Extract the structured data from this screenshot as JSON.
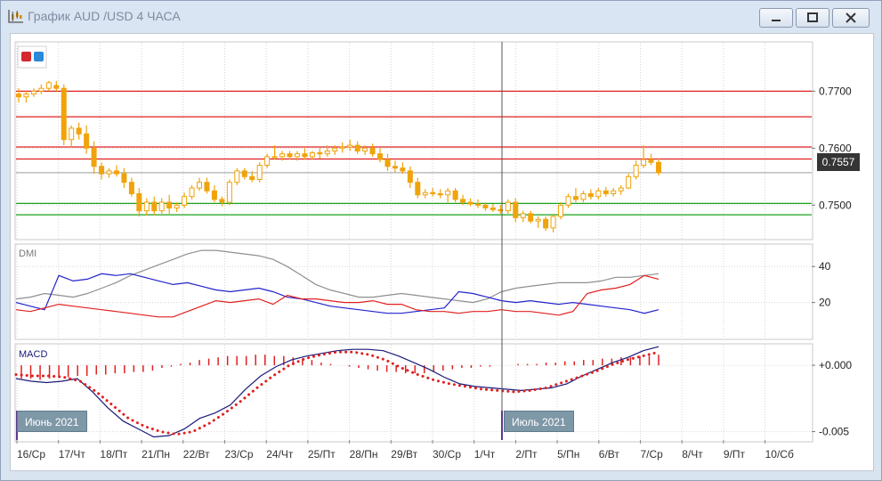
{
  "window": {
    "title": "График AUD /USD  4 ЧАСА",
    "buttons": [
      "minimize-button",
      "restore-button",
      "close-button"
    ]
  },
  "colors": {
    "candle": "#f0a30a",
    "resistance_line": "#e02020",
    "support_line": "#1aa31a",
    "current_line": "#9a9a9a",
    "dmi_adx": "#8f8f8f",
    "dmi_plus": "#2222cc",
    "dmi_minus": "#e02020",
    "macd_line": "#1a1a7a",
    "macd_signal": "#e02020",
    "macd_hist": "#e02020",
    "grid": "#d6d6d6",
    "cursor": "#4a4a4a",
    "month_label_bg": "#7f98a8",
    "current_price_bg": "#353535"
  },
  "current_price": "0.7557",
  "month_labels": {
    "june": "Июнь 2021",
    "july": "Июль 2021"
  },
  "chart_data": [
    {
      "type": "candlestick",
      "title": "",
      "y_ticks": [
        "0.7700",
        "0.7600",
        "0.7500"
      ],
      "y_tick_values": [
        0.77,
        0.76,
        0.75
      ],
      "ylim": [
        0.7441,
        0.7785
      ],
      "grid": true,
      "horizontal_levels": {
        "resistance": [
          0.77,
          0.7655,
          0.7602,
          0.7581
        ],
        "support": [
          0.7503,
          0.7483
        ],
        "current": 0.7557
      },
      "x_labels": [
        "16/Ср",
        "17/Чт",
        "18/Пт",
        "21/Пн",
        "22/Вт",
        "23/Ср",
        "24/Чт",
        "25/Пт",
        "28/Пн",
        "29/Вт",
        "30/Ср",
        "1/Чт",
        "2/Пт",
        "5/Пн",
        "6/Вт",
        "7/Ср",
        "8/Чт",
        "9/Пт",
        "10/Сб"
      ],
      "candles": [
        [
          0.7695,
          0.7705,
          0.768,
          0.769
        ],
        [
          0.769,
          0.77,
          0.768,
          0.7695
        ],
        [
          0.7695,
          0.7705,
          0.769,
          0.77
        ],
        [
          0.77,
          0.7712,
          0.7695,
          0.7705
        ],
        [
          0.7705,
          0.7718,
          0.77,
          0.7715
        ],
        [
          0.771,
          0.7718,
          0.77,
          0.7705
        ],
        [
          0.7705,
          0.7712,
          0.7605,
          0.7615
        ],
        [
          0.7615,
          0.764,
          0.76,
          0.7635
        ],
        [
          0.7635,
          0.7645,
          0.7615,
          0.7625
        ],
        [
          0.7625,
          0.764,
          0.759,
          0.76
        ],
        [
          0.76,
          0.7612,
          0.7555,
          0.7568
        ],
        [
          0.7568,
          0.7575,
          0.7545,
          0.7555
        ],
        [
          0.7555,
          0.7565,
          0.7548,
          0.756
        ],
        [
          0.756,
          0.757,
          0.755,
          0.7555
        ],
        [
          0.7555,
          0.7565,
          0.753,
          0.754
        ],
        [
          0.754,
          0.7548,
          0.7515,
          0.752
        ],
        [
          0.752,
          0.753,
          0.748,
          0.749
        ],
        [
          0.749,
          0.7512,
          0.7482,
          0.7505
        ],
        [
          0.7505,
          0.7515,
          0.7482,
          0.749
        ],
        [
          0.749,
          0.7512,
          0.7485,
          0.7505
        ],
        [
          0.7505,
          0.7518,
          0.7485,
          0.7495
        ],
        [
          0.7495,
          0.7505,
          0.7488,
          0.75
        ],
        [
          0.75,
          0.7522,
          0.7495,
          0.7515
        ],
        [
          0.7515,
          0.7535,
          0.751,
          0.753
        ],
        [
          0.753,
          0.7548,
          0.7525,
          0.754
        ],
        [
          0.754,
          0.7548,
          0.752,
          0.7525
        ],
        [
          0.7525,
          0.7535,
          0.7505,
          0.751
        ],
        [
          0.751,
          0.7515,
          0.7498,
          0.7505
        ],
        [
          0.7505,
          0.7545,
          0.75,
          0.754
        ],
        [
          0.754,
          0.7565,
          0.7535,
          0.756
        ],
        [
          0.756,
          0.7565,
          0.7545,
          0.755
        ],
        [
          0.755,
          0.756,
          0.754,
          0.7545
        ],
        [
          0.7545,
          0.7575,
          0.754,
          0.757
        ],
        [
          0.757,
          0.759,
          0.7565,
          0.7585
        ],
        [
          0.7585,
          0.7605,
          0.758,
          0.7585
        ],
        [
          0.7585,
          0.7595,
          0.7578,
          0.759
        ],
        [
          0.759,
          0.7595,
          0.758,
          0.7585
        ],
        [
          0.7585,
          0.7595,
          0.7578,
          0.759
        ],
        [
          0.759,
          0.76,
          0.758,
          0.7585
        ],
        [
          0.7585,
          0.7595,
          0.758,
          0.7592
        ],
        [
          0.7592,
          0.76,
          0.7582,
          0.759
        ],
        [
          0.759,
          0.7605,
          0.7585,
          0.7595
        ],
        [
          0.7595,
          0.7605,
          0.7588,
          0.76
        ],
        [
          0.76,
          0.761,
          0.7592,
          0.7602
        ],
        [
          0.7602,
          0.7615,
          0.7595,
          0.7605
        ],
        [
          0.7605,
          0.7612,
          0.759,
          0.7595
        ],
        [
          0.7595,
          0.7605,
          0.7588,
          0.76
        ],
        [
          0.76,
          0.7608,
          0.7585,
          0.759
        ],
        [
          0.759,
          0.76,
          0.7575,
          0.758
        ],
        [
          0.758,
          0.759,
          0.756,
          0.7568
        ],
        [
          0.7568,
          0.7578,
          0.7558,
          0.7565
        ],
        [
          0.7565,
          0.7575,
          0.7555,
          0.756
        ],
        [
          0.756,
          0.7568,
          0.753,
          0.754
        ],
        [
          0.754,
          0.7548,
          0.7512,
          0.7518
        ],
        [
          0.7518,
          0.7528,
          0.7512,
          0.7522
        ],
        [
          0.7522,
          0.753,
          0.7515,
          0.752
        ],
        [
          0.752,
          0.7528,
          0.7512,
          0.7518
        ],
        [
          0.7518,
          0.753,
          0.7505,
          0.7525
        ],
        [
          0.7525,
          0.753,
          0.7505,
          0.751
        ],
        [
          0.751,
          0.7518,
          0.75,
          0.7505
        ],
        [
          0.7505,
          0.7512,
          0.7498,
          0.7502
        ],
        [
          0.7502,
          0.751,
          0.7495,
          0.75
        ],
        [
          0.75,
          0.7505,
          0.749,
          0.7495
        ],
        [
          0.7495,
          0.7502,
          0.7488,
          0.7492
        ],
        [
          0.7492,
          0.75,
          0.7485,
          0.749
        ],
        [
          0.749,
          0.751,
          0.7485,
          0.7505
        ],
        [
          0.7505,
          0.7512,
          0.747,
          0.7478
        ],
        [
          0.7478,
          0.749,
          0.747,
          0.7485
        ],
        [
          0.7485,
          0.749,
          0.7468,
          0.7472
        ],
        [
          0.7472,
          0.748,
          0.746,
          0.7475
        ],
        [
          0.7475,
          0.748,
          0.7455,
          0.746
        ],
        [
          0.746,
          0.7485,
          0.7452,
          0.748
        ],
        [
          0.748,
          0.7505,
          0.7475,
          0.75
        ],
        [
          0.75,
          0.752,
          0.7495,
          0.7515
        ],
        [
          0.7515,
          0.753,
          0.7505,
          0.751
        ],
        [
          0.751,
          0.7525,
          0.7505,
          0.752
        ],
        [
          0.752,
          0.7528,
          0.751,
          0.7515
        ],
        [
          0.7515,
          0.753,
          0.751,
          0.7525
        ],
        [
          0.7525,
          0.7532,
          0.7515,
          0.752
        ],
        [
          0.752,
          0.753,
          0.7515,
          0.7525
        ],
        [
          0.7525,
          0.7535,
          0.7518,
          0.753
        ],
        [
          0.753,
          0.7555,
          0.7528,
          0.755
        ],
        [
          0.755,
          0.7578,
          0.7545,
          0.757
        ],
        [
          0.757,
          0.7605,
          0.7565,
          0.758
        ],
        [
          0.758,
          0.759,
          0.757,
          0.7575
        ],
        [
          0.7575,
          0.7582,
          0.7552,
          0.7557
        ]
      ]
    },
    {
      "type": "line",
      "title": "DMI",
      "y_ticks": [
        "40",
        "20"
      ],
      "y_tick_values": [
        40,
        20
      ],
      "ylim": [
        0,
        52
      ],
      "series": [
        {
          "role": "adx",
          "values": [
            22,
            23,
            25,
            24,
            23,
            25,
            28,
            31,
            35,
            38,
            41,
            44,
            47,
            49,
            49,
            48,
            47,
            46,
            44,
            40,
            35,
            30,
            27,
            25,
            23,
            23,
            24,
            25,
            24,
            23,
            22,
            21,
            20,
            22,
            26,
            28,
            29,
            30,
            31,
            31,
            31,
            32,
            34,
            34,
            35,
            36
          ]
        },
        {
          "role": "plus_di",
          "values": [
            20,
            18,
            16,
            35,
            32,
            33,
            36,
            35,
            36,
            34,
            32,
            30,
            31,
            29,
            27,
            26,
            27,
            28,
            26,
            23,
            22,
            20,
            18,
            17,
            16,
            15,
            14,
            14,
            15,
            16,
            17,
            26,
            25,
            23,
            21,
            20,
            21,
            20,
            19,
            20,
            19,
            18,
            17,
            16,
            14,
            16
          ]
        },
        {
          "role": "minus_di",
          "values": [
            16,
            15,
            17,
            19,
            18,
            17,
            16,
            15,
            14,
            13,
            12,
            12,
            15,
            18,
            21,
            20,
            21,
            22,
            19,
            24,
            22,
            22,
            21,
            20,
            20,
            21,
            19,
            19,
            16,
            15,
            15,
            14,
            15,
            15,
            16,
            15,
            15,
            14,
            13,
            15,
            25,
            27,
            28,
            30,
            35,
            33
          ]
        }
      ]
    },
    {
      "type": "line",
      "title": "MACD",
      "y_ticks": [
        "+0.000",
        "-0.005"
      ],
      "y_tick_values": [
        0.0,
        -0.005
      ],
      "ylim": [
        -0.0057,
        0.00155
      ],
      "series": [
        {
          "role": "macd",
          "values": [
            -0.001,
            -0.0012,
            -0.0013,
            -0.0012,
            -0.001,
            -0.002,
            -0.0032,
            -0.0042,
            -0.0048,
            -0.0054,
            -0.0053,
            -0.0048,
            -0.004,
            -0.0036,
            -0.003,
            -0.0018,
            -0.0008,
            -0.0001,
            0.0004,
            0.0007,
            0.0009,
            0.0011,
            0.0012,
            0.0012,
            0.0011,
            0.0007,
            0.0002,
            -0.0003,
            -0.0009,
            -0.0014,
            -0.0016,
            -0.0017,
            -0.0018,
            -0.0019,
            -0.0018,
            -0.0017,
            -0.0014,
            -0.0008,
            -0.0003,
            0.0002,
            0.0006,
            0.0011,
            0.0014
          ]
        },
        {
          "role": "signal",
          "values": [
            -0.0007,
            -0.0008,
            -0.0008,
            -0.0009,
            -0.0012,
            -0.002,
            -0.003,
            -0.004,
            -0.0046,
            -0.005,
            -0.0052,
            -0.005,
            -0.0044,
            -0.0036,
            -0.0027,
            -0.0017,
            -0.0008,
            0.0,
            0.0005,
            0.0008,
            0.001,
            0.001,
            0.0008,
            0.0004,
            -0.0002,
            -0.0007,
            -0.0011,
            -0.0014,
            -0.0016,
            -0.0018,
            -0.0019,
            -0.002,
            -0.0019,
            -0.0017,
            -0.0013,
            -0.0009,
            -0.0005,
            0.0,
            0.0004,
            0.0007,
            0.001
          ]
        },
        {
          "role": "histogram",
          "values": [
            -0.001,
            -0.001,
            -0.0011,
            -0.001,
            -0.0009,
            -0.0009,
            -0.0008,
            -0.0008,
            -0.0007,
            -0.0007,
            -0.0006,
            -0.0006,
            -0.0005,
            -0.0005,
            -0.0004,
            -0.0002,
            -0.0001,
            0.0001,
            0.0002,
            0.0004,
            0.0005,
            0.0006,
            0.0007,
            0.0007,
            0.0007,
            0.0008,
            0.0008,
            0.0007,
            0.0007,
            0.0006,
            0.0005,
            0.0004,
            0.0002,
            0.0001,
            0.0,
            -0.0001,
            -0.0002,
            -0.0003,
            -0.0004,
            -0.0005,
            -0.0005,
            -0.0006,
            -0.0006,
            -0.0006,
            -0.0005,
            -0.0004,
            -0.0003,
            -0.0002,
            -0.0002,
            -0.0001,
            -0.0001,
            0.0,
            0.0,
            0.0001,
            0.0001,
            0.0001,
            0.0002,
            0.0002,
            0.0003,
            0.0003,
            0.0004,
            0.0004,
            0.0005,
            0.0005,
            0.0006,
            0.0006,
            0.0007,
            0.0007,
            0.0008
          ]
        }
      ]
    }
  ]
}
